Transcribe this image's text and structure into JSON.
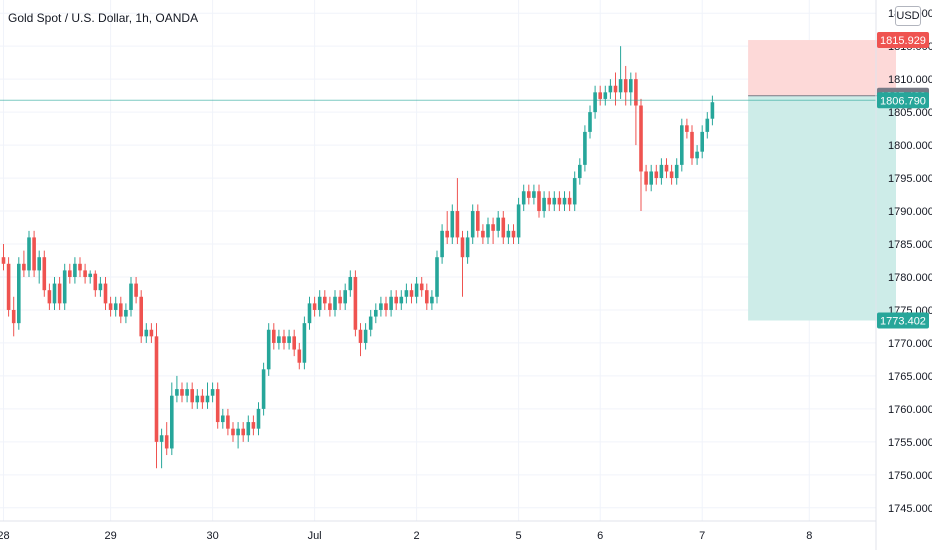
{
  "chart_data": {
    "type": "candlestick",
    "title": "Gold Spot / U.S. Dollar, 1h, OANDA",
    "currency": "USD",
    "ylim": [
      1743,
      1822
    ],
    "yticks": [
      1745,
      1750,
      1755,
      1760,
      1765,
      1770,
      1775,
      1780,
      1785,
      1790,
      1795,
      1800,
      1805,
      1810,
      1815,
      1820
    ],
    "ytick_labels": [
      "1745.000",
      "1750.000",
      "1755.000",
      "1760.000",
      "1765.000",
      "1770.000",
      "1775.000",
      "1780.000",
      "1785.000",
      "1790.000",
      "1795.000",
      "1800.000",
      "1805.000",
      "1810.000",
      "1815.000",
      "1820.000"
    ],
    "xticks": [
      {
        "label": "28",
        "index": 0
      },
      {
        "label": "29",
        "index": 21
      },
      {
        "label": "30",
        "index": 41
      },
      {
        "label": "Jul",
        "index": 61
      },
      {
        "label": "2",
        "index": 81
      },
      {
        "label": "5",
        "index": 101
      },
      {
        "label": "6",
        "index": 117
      },
      {
        "label": "7",
        "index": 137
      },
      {
        "label": "8",
        "index": 158
      }
    ],
    "price_tags": [
      {
        "label": "1815.929",
        "value": 1815.929,
        "color": "#ef5350"
      },
      {
        "label": "1807.488",
        "value": 1807.488,
        "color": "#787b86"
      },
      {
        "label": "1806.790",
        "value": 1806.79,
        "color": "#26a69a"
      },
      {
        "label": "1773.402",
        "value": 1773.402,
        "color": "#26a69a"
      }
    ],
    "position": {
      "type": "short",
      "entry": 1807.488,
      "stop_loss": 1815.929,
      "take_profit": 1773.402,
      "start_index": 146,
      "end_index": 175
    },
    "current_price": 1806.79,
    "colors": {
      "up": "#26a69a",
      "down": "#ef5350",
      "stop_zone": "#fdd9d8",
      "target_zone": "#cdece8",
      "grid": "#f0f3fa",
      "text": "#131722"
    },
    "candles": [
      [
        1783.0,
        1782.0,
        1785.0,
        1781.0
      ],
      [
        1782.0,
        1775.0,
        1783.0,
        1774.0
      ],
      [
        1775.0,
        1773.0,
        1777.0,
        1771.0
      ],
      [
        1773.0,
        1782.0,
        1783.0,
        1772.0
      ],
      [
        1782.0,
        1781.0,
        1784.0,
        1780.0
      ],
      [
        1781.0,
        1786.0,
        1787.0,
        1780.0
      ],
      [
        1786.0,
        1781.0,
        1787.0,
        1780.0
      ],
      [
        1781.0,
        1783.0,
        1784.0,
        1779.0
      ],
      [
        1783.0,
        1778.0,
        1784.0,
        1777.0
      ],
      [
        1778.0,
        1776.0,
        1779.0,
        1775.0
      ],
      [
        1776.0,
        1779.0,
        1780.0,
        1775.0
      ],
      [
        1779.0,
        1776.0,
        1780.0,
        1775.0
      ],
      [
        1776.0,
        1781.0,
        1782.0,
        1775.0
      ],
      [
        1781.0,
        1780.0,
        1782.0,
        1779.0
      ],
      [
        1780.0,
        1782.0,
        1783.0,
        1779.0
      ],
      [
        1782.0,
        1781.0,
        1783.0,
        1780.0
      ],
      [
        1781.0,
        1780.0,
        1782.0,
        1779.0
      ],
      [
        1780.0,
        1780.5,
        1781.0,
        1779.0
      ],
      [
        1780.5,
        1778.0,
        1781.0,
        1777.0
      ],
      [
        1778.0,
        1779.0,
        1780.0,
        1777.0
      ],
      [
        1779.0,
        1776.0,
        1780.0,
        1775.0
      ],
      [
        1776.0,
        1775.0,
        1777.0,
        1774.0
      ],
      [
        1775.0,
        1776.0,
        1777.0,
        1774.0
      ],
      [
        1776.0,
        1774.0,
        1777.0,
        1773.0
      ],
      [
        1774.0,
        1775.0,
        1776.0,
        1773.0
      ],
      [
        1775.0,
        1779.0,
        1780.0,
        1774.0
      ],
      [
        1779.0,
        1777.0,
        1780.0,
        1776.0
      ],
      [
        1777.0,
        1771.0,
        1778.0,
        1770.0
      ],
      [
        1771.0,
        1772.0,
        1773.0,
        1770.0
      ],
      [
        1772.0,
        1771.0,
        1773.0,
        1770.0
      ],
      [
        1771.0,
        1755.0,
        1773.0,
        1751.0
      ],
      [
        1755.0,
        1756.0,
        1757.0,
        1751.0
      ],
      [
        1756.0,
        1754.0,
        1758.0,
        1753.0
      ],
      [
        1754.0,
        1762.0,
        1764.0,
        1753.0
      ],
      [
        1762.0,
        1763.0,
        1765.0,
        1761.0
      ],
      [
        1763.0,
        1762.0,
        1764.0,
        1761.0
      ],
      [
        1762.0,
        1763.0,
        1764.0,
        1761.0
      ],
      [
        1763.0,
        1761.0,
        1764.0,
        1760.0
      ],
      [
        1761.0,
        1762.0,
        1763.0,
        1760.0
      ],
      [
        1762.0,
        1761.0,
        1763.0,
        1760.0
      ],
      [
        1761.0,
        1762.0,
        1764.0,
        1760.0
      ],
      [
        1762.0,
        1763.0,
        1764.0,
        1761.0
      ],
      [
        1763.0,
        1758.0,
        1764.0,
        1757.0
      ],
      [
        1758.0,
        1759.0,
        1760.0,
        1757.0
      ],
      [
        1759.0,
        1757.0,
        1760.0,
        1756.0
      ],
      [
        1757.0,
        1756.0,
        1758.0,
        1755.0
      ],
      [
        1756.0,
        1757.0,
        1758.0,
        1754.0
      ],
      [
        1757.0,
        1756.0,
        1758.0,
        1755.0
      ],
      [
        1756.0,
        1758.0,
        1759.0,
        1755.0
      ],
      [
        1758.0,
        1757.0,
        1759.0,
        1756.0
      ],
      [
        1757.0,
        1760.0,
        1761.0,
        1756.0
      ],
      [
        1760.0,
        1766.0,
        1767.0,
        1759.0
      ],
      [
        1766.0,
        1772.0,
        1773.0,
        1765.0
      ],
      [
        1772.0,
        1770.0,
        1773.0,
        1769.0
      ],
      [
        1770.0,
        1771.0,
        1772.0,
        1769.0
      ],
      [
        1771.0,
        1770.0,
        1772.0,
        1769.0
      ],
      [
        1770.0,
        1771.0,
        1772.0,
        1769.0
      ],
      [
        1771.0,
        1769.0,
        1772.0,
        1768.0
      ],
      [
        1769.0,
        1767.0,
        1770.0,
        1766.0
      ],
      [
        1767.0,
        1773.0,
        1774.0,
        1766.0
      ],
      [
        1773.0,
        1776.0,
        1777.0,
        1772.0
      ],
      [
        1776.0,
        1775.0,
        1777.0,
        1774.0
      ],
      [
        1775.0,
        1777.0,
        1778.0,
        1774.0
      ],
      [
        1777.0,
        1776.0,
        1778.0,
        1775.0
      ],
      [
        1776.0,
        1775.0,
        1777.0,
        1774.0
      ],
      [
        1775.0,
        1777.0,
        1778.0,
        1774.0
      ],
      [
        1777.0,
        1776.0,
        1778.0,
        1775.0
      ],
      [
        1776.0,
        1778.0,
        1779.0,
        1775.0
      ],
      [
        1778.0,
        1780.0,
        1781.0,
        1777.0
      ],
      [
        1780.0,
        1772.0,
        1781.0,
        1771.0
      ],
      [
        1772.0,
        1770.0,
        1773.0,
        1768.0
      ],
      [
        1770.0,
        1772.0,
        1773.0,
        1769.0
      ],
      [
        1772.0,
        1774.0,
        1775.0,
        1771.0
      ],
      [
        1774.0,
        1775.0,
        1776.0,
        1773.0
      ],
      [
        1775.0,
        1776.0,
        1777.0,
        1774.0
      ],
      [
        1776.0,
        1775.0,
        1777.0,
        1774.0
      ],
      [
        1775.0,
        1777.0,
        1778.0,
        1774.0
      ],
      [
        1777.0,
        1776.0,
        1778.0,
        1775.0
      ],
      [
        1776.0,
        1777.0,
        1778.0,
        1775.0
      ],
      [
        1777.0,
        1778.0,
        1779.0,
        1776.0
      ],
      [
        1778.0,
        1777.0,
        1779.0,
        1776.0
      ],
      [
        1777.0,
        1779.0,
        1780.0,
        1776.0
      ],
      [
        1779.0,
        1778.0,
        1780.0,
        1777.0
      ],
      [
        1778.0,
        1776.0,
        1779.0,
        1775.0
      ],
      [
        1776.0,
        1777.0,
        1778.0,
        1775.0
      ],
      [
        1777.0,
        1783.0,
        1784.0,
        1776.0
      ],
      [
        1783.0,
        1787.0,
        1788.0,
        1782.0
      ],
      [
        1787.0,
        1786.0,
        1790.0,
        1785.0
      ],
      [
        1786.0,
        1790.0,
        1791.0,
        1785.0
      ],
      [
        1790.0,
        1786.0,
        1795.0,
        1785.0
      ],
      [
        1786.0,
        1783.0,
        1787.0,
        1777.0
      ],
      [
        1783.0,
        1786.0,
        1787.0,
        1782.0
      ],
      [
        1786.0,
        1790.0,
        1791.0,
        1785.0
      ],
      [
        1790.0,
        1787.0,
        1791.0,
        1786.0
      ],
      [
        1787.0,
        1786.0,
        1788.0,
        1785.0
      ],
      [
        1786.0,
        1788.0,
        1789.0,
        1785.0
      ],
      [
        1788.0,
        1787.0,
        1789.0,
        1785.0
      ],
      [
        1787.0,
        1789.0,
        1790.0,
        1786.0
      ],
      [
        1789.0,
        1786.0,
        1790.0,
        1785.0
      ],
      [
        1786.0,
        1787.0,
        1788.0,
        1785.0
      ],
      [
        1787.0,
        1786.0,
        1788.0,
        1785.0
      ],
      [
        1786.0,
        1791.0,
        1792.0,
        1785.0
      ],
      [
        1791.0,
        1793.0,
        1794.0,
        1790.0
      ],
      [
        1793.0,
        1792.0,
        1794.0,
        1791.0
      ],
      [
        1792.0,
        1793.0,
        1794.0,
        1791.0
      ],
      [
        1793.0,
        1790.0,
        1794.0,
        1789.0
      ],
      [
        1790.0,
        1792.0,
        1793.0,
        1789.0
      ],
      [
        1792.0,
        1791.0,
        1793.0,
        1790.0
      ],
      [
        1791.0,
        1792.0,
        1793.0,
        1790.0
      ],
      [
        1792.0,
        1791.0,
        1793.0,
        1790.0
      ],
      [
        1791.0,
        1792.0,
        1793.0,
        1790.0
      ],
      [
        1792.0,
        1791.0,
        1793.0,
        1790.0
      ],
      [
        1791.0,
        1795.0,
        1796.0,
        1790.0
      ],
      [
        1795.0,
        1797.0,
        1798.0,
        1794.0
      ],
      [
        1797.0,
        1802.0,
        1803.0,
        1796.0
      ],
      [
        1802.0,
        1805.0,
        1806.0,
        1801.0
      ],
      [
        1805.0,
        1808.0,
        1809.0,
        1804.0
      ],
      [
        1808.0,
        1807.0,
        1809.0,
        1806.0
      ],
      [
        1807.0,
        1808.0,
        1809.0,
        1806.0
      ],
      [
        1808.0,
        1809.0,
        1810.0,
        1807.0
      ],
      [
        1809.0,
        1808.0,
        1811.0,
        1806.0
      ],
      [
        1808.0,
        1810.0,
        1815.0,
        1807.0
      ],
      [
        1810.0,
        1808.0,
        1812.0,
        1806.0
      ],
      [
        1808.0,
        1810.0,
        1811.0,
        1806.0
      ],
      [
        1810.0,
        1806.0,
        1811.0,
        1800.0
      ],
      [
        1806.0,
        1796.0,
        1807.0,
        1790.0
      ],
      [
        1796.0,
        1794.0,
        1797.0,
        1793.0
      ],
      [
        1794.0,
        1796.0,
        1797.0,
        1793.0
      ],
      [
        1796.0,
        1795.0,
        1797.0,
        1794.0
      ],
      [
        1795.0,
        1797.0,
        1798.0,
        1794.0
      ],
      [
        1797.0,
        1796.0,
        1798.0,
        1795.0
      ],
      [
        1796.0,
        1795.0,
        1797.0,
        1794.0
      ],
      [
        1795.0,
        1797.0,
        1798.0,
        1794.0
      ],
      [
        1797.0,
        1803.0,
        1804.0,
        1796.0
      ],
      [
        1803.0,
        1802.0,
        1804.0,
        1801.0
      ],
      [
        1802.0,
        1798.0,
        1803.0,
        1797.0
      ],
      [
        1798.0,
        1799.0,
        1800.0,
        1797.0
      ],
      [
        1799.0,
        1802.0,
        1803.0,
        1798.0
      ],
      [
        1802.0,
        1804.0,
        1805.0,
        1801.0
      ],
      [
        1804.0,
        1806.5,
        1807.5,
        1803.0
      ]
    ]
  }
}
